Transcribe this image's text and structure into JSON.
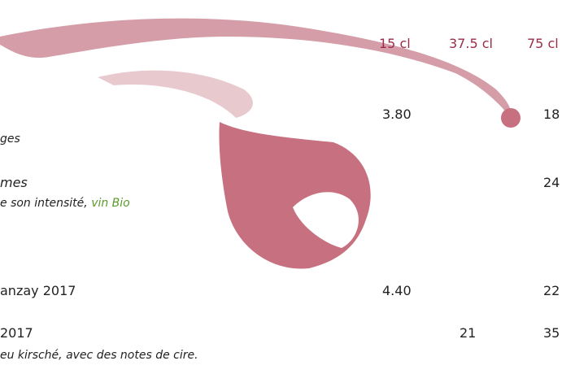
{
  "header": {
    "columns": [
      "15 cl",
      "37.5 cl",
      "75 cl"
    ]
  },
  "rows": [
    {
      "description": "ges",
      "prices": [
        "3.80",
        "18"
      ]
    },
    {
      "name": "mes",
      "description": "e son intensité,",
      "note": "vin Bio",
      "prices": [
        "24"
      ]
    },
    {
      "name": "anzay 2017",
      "prices": [
        "4.40",
        "22"
      ]
    },
    {
      "name": "2017",
      "description": "eu kirsché, avec des notes de cire.",
      "prices": [
        "21",
        "35"
      ]
    }
  ]
}
